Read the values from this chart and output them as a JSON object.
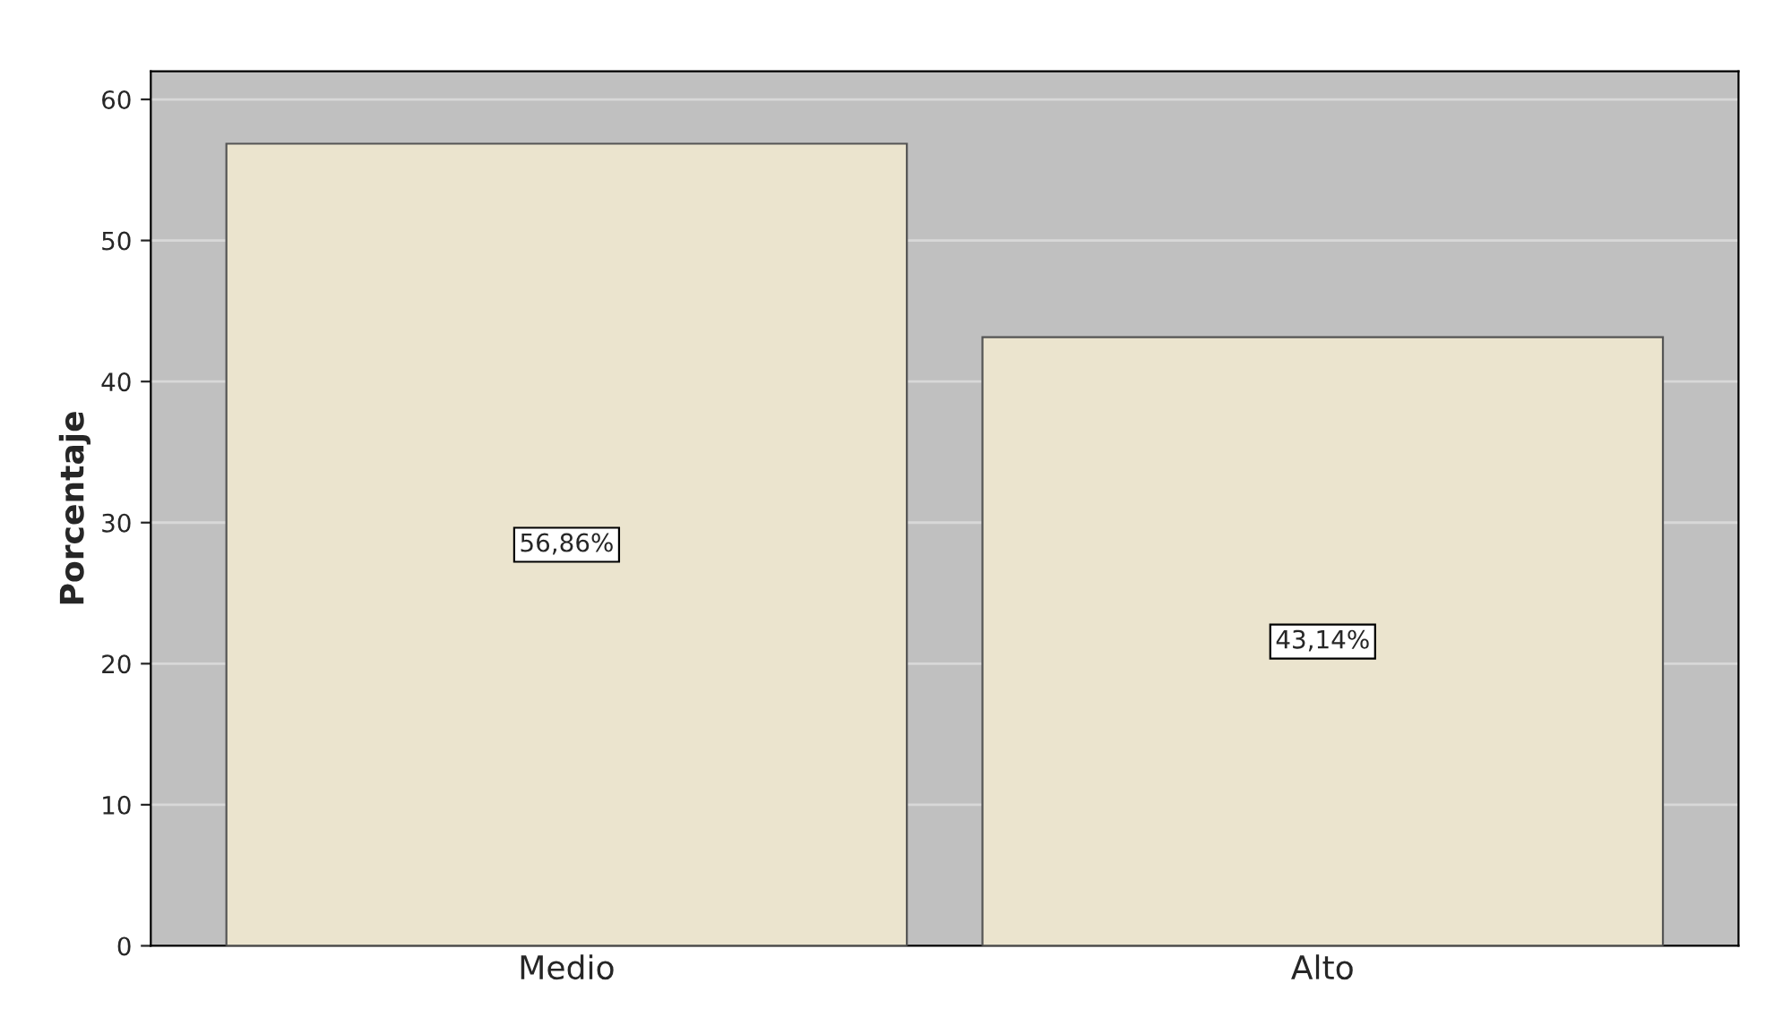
{
  "chart_data": {
    "type": "bar",
    "ylabel": "Porcentaje",
    "categories": [
      "Medio",
      "Alto"
    ],
    "values": [
      56.86,
      43.14
    ],
    "value_labels": [
      "56,86%",
      "43,14%"
    ],
    "color": "#ebe4ce",
    "ylim": [
      0,
      62
    ],
    "yticks": [
      0,
      10,
      20,
      30,
      40,
      50,
      60
    ],
    "grid": "y"
  }
}
